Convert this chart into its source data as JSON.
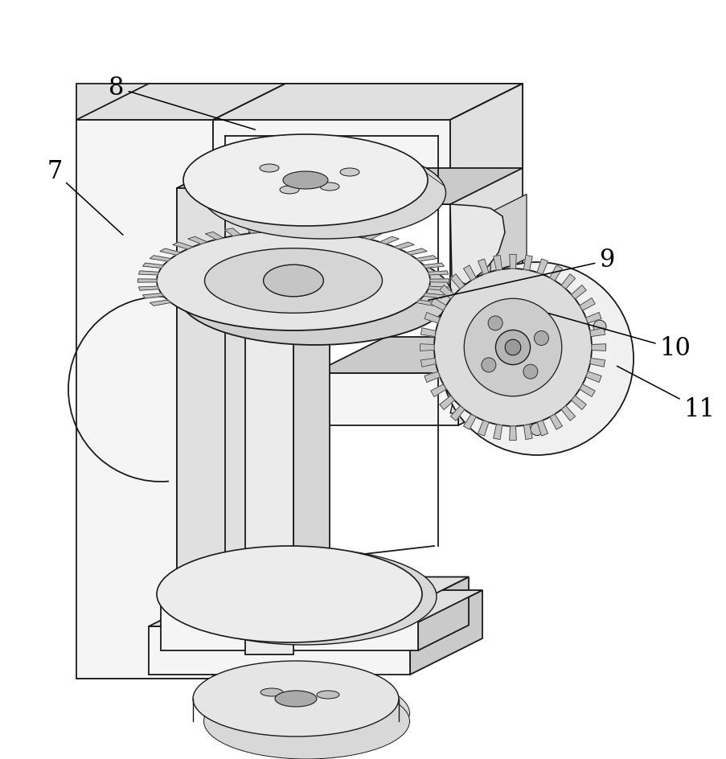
{
  "figure_width": 9.04,
  "figure_height": 9.44,
  "dpi": 100,
  "background_color": "#ffffff",
  "lc": "#1a1a1a",
  "lw": 1.3,
  "cf": "#f5f5f5",
  "cs": "#e0e0e0",
  "cd": "#cacaca",
  "cdd": "#b5b5b5",
  "cgear": "#d8d8d8",
  "label_fontsize": 22
}
